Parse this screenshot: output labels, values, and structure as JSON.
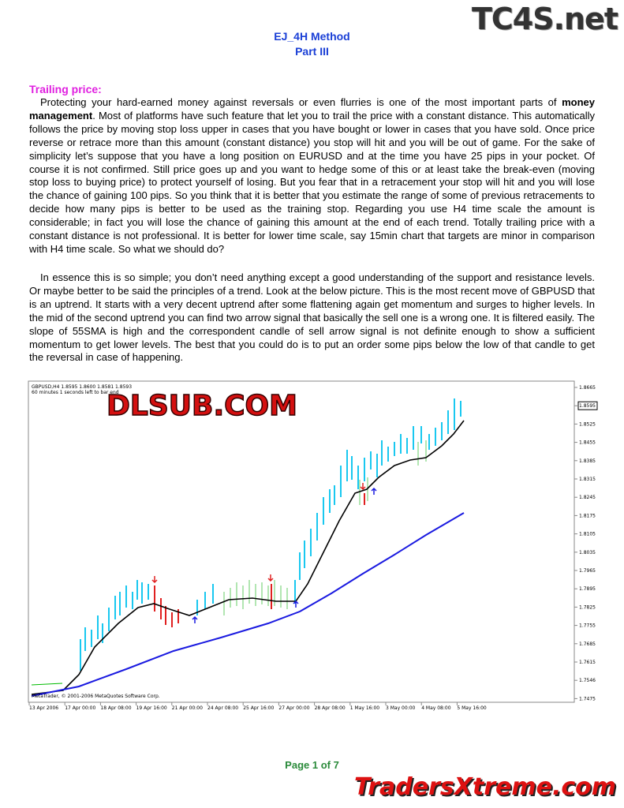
{
  "watermark_top": "TC4S.net",
  "header": {
    "title": "EJ_4H Method",
    "subtitle": "Part III"
  },
  "section": {
    "heading": "Trailing price:",
    "paragraph_1": {
      "before": "Protecting your hard-earned money against reversals or even flurries is one of the most important parts of ",
      "bold": "money management",
      "after": ". Most of platforms have such feature that let you to trail the price with a constant distance. This automatically follows the price by moving stop loss upper in cases that you have bought or lower in cases that you have sold. Once price reverse or retrace more than this amount (constant distance) you stop will hit and you will be out of game. For the sake of simplicity let’s suppose that you have a long position on EURUSD and at the time you have 25 pips in your pocket. Of course it is not confirmed. Still price goes up and you want to hedge some of this or at least take the break-even (moving stop loss to buying price) to protect yourself of losing. But you fear that in a retracement your stop will hit and you will lose the chance of gaining 100 pips. So you think that it is better that you estimate the range of some of previous retracements to decide how many pips is better to be used as the training stop. Regarding you use H4 time scale the amount is considerable; in fact you will lose the chance of gaining this amount at the end of each trend. Totally trailing price with a constant distance is not professional. It is better for lower time scale, say 15min chart that targets are minor in comparison with H4 time scale. So what we should do?"
    },
    "paragraph_2": "In essence this is so simple; you don’t need anything except a good understanding of the support and resistance levels. Or maybe better to be said the principles of a trend. Look at the below picture. This is the most recent move of GBPUSD that is an uptrend. It starts with a very decent uptrend after some flattening again get momentum and surges to higher levels. In the mid of the second uptrend you can find two arrow signal that basically the sell one is a wrong one. It is filtered easily. The slope of 55SMA is high and the correspondent candle of sell arrow signal is not definite enough to show a sufficient momentum to get lower levels. The best that you could do is to put an order some pips below the low of that candle to get the reversal in case of happening."
  },
  "chart_image": {
    "info_line": "GBPUSD,H4  1.8595 1.8600 1.8581 1.8593",
    "timer_line": "60 minutes 1 seconds left to bar end",
    "watermark": "DLSUB.COM",
    "price_labels": [
      "1.8665",
      "1.8595",
      "1.8525",
      "1.8455",
      "1.8385",
      "1.8315",
      "1.8245",
      "1.8175",
      "1.8105",
      "1.8035",
      "1.7965",
      "1.7895",
      "1.7825",
      "1.7755",
      "1.7685",
      "1.7615",
      "1.7546",
      "1.7475"
    ],
    "time_labels": [
      "13 Apr 2006",
      "17 Apr 00:00",
      "18 Apr 08:00",
      "19 Apr 16:00",
      "21 Apr 00:00",
      "24 Apr 08:00",
      "25 Apr 16:00",
      "27 Apr 00:00",
      "28 Apr 08:00",
      "1 May 16:00",
      "3 May 00:00",
      "4 May 08:00",
      "5 May 16:00"
    ],
    "copyright": "MetaTrader, © 2001-2006 MetaQuotes Software Corp."
  },
  "footer": {
    "page": "Page 1 of 7",
    "watermark": "TradersXtreme.com"
  }
}
